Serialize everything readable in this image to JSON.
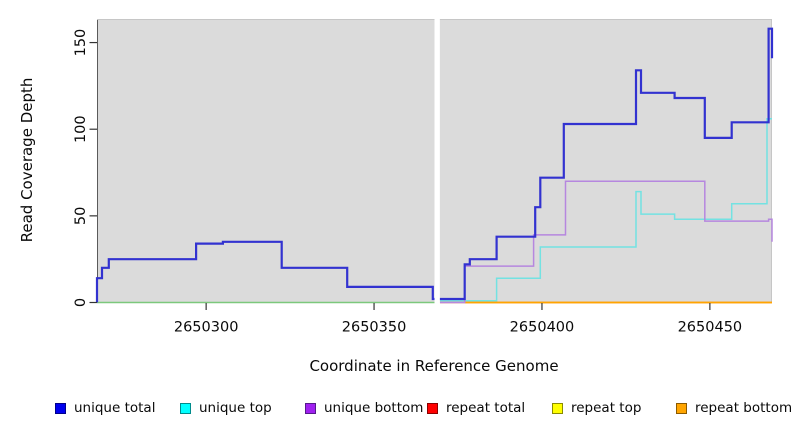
{
  "chart_data": {
    "type": "line",
    "subtype": "step-coverage-plot",
    "title": "",
    "xlabel": "Coordinate in Reference Genome",
    "ylabel": "Read Coverage Depth",
    "xlim": [
      2650267.5,
      2650468.5
    ],
    "ylim": [
      0,
      163.6
    ],
    "x_ticks": [
      2650300,
      2650350,
      2650400,
      2650450
    ],
    "y_ticks": [
      0,
      50,
      100,
      150
    ],
    "grid": false,
    "plot_bg": "#DBDBDB",
    "figure_bg": "#FFFFFF",
    "gap_region": {
      "x_start": 2650368,
      "x_end": 2650369.6,
      "color": "#FFFFFF",
      "note": "white vertical band with no data splitting the plot"
    },
    "series": [
      {
        "name": "repeat top",
        "legend_color": "#FFFF00",
        "line_color": "#FFFF00",
        "width": 1.5,
        "points": [
          [
            2650369.6,
            0
          ],
          [
            2650468.5,
            0
          ]
        ],
        "note": "zero across entire visible range; hidden under other zero lines"
      },
      {
        "name": "repeat total",
        "legend_color": "#FF0000",
        "line_color": "#F0659F",
        "width": 1.5,
        "points": [
          [
            2650369.6,
            0
          ],
          [
            2650468.5,
            0
          ]
        ],
        "note": "zero everywhere; visible as pink-red segment just right of the gap until 2650377"
      },
      {
        "name": "repeat bottom",
        "legend_color": "#FFA500",
        "line_color": "#FFA500",
        "width": 1.8,
        "points": [
          [
            2650377,
            0
          ],
          [
            2650468.5,
            0
          ]
        ],
        "note": "zero across right region; orange baseline from 2650377 to right edge"
      },
      {
        "name": "zero baseline left of gap",
        "legend_color": null,
        "line_color": "#7CC87C",
        "width": 1.5,
        "points": [
          [
            2650267.5,
            0
          ],
          [
            2650368,
            0
          ]
        ],
        "note": "all non-total series are 0 left of the gap; overlapping zero lines render green"
      },
      {
        "name": "unique top",
        "legend_color": "#00FFFF",
        "line_color": "#73E2E2",
        "width": 1.5,
        "points": [
          [
            2650369.6,
            1
          ],
          [
            2650386.5,
            14
          ],
          [
            2650399.5,
            32
          ],
          [
            2650428,
            64
          ],
          [
            2650429.5,
            51
          ],
          [
            2650439.5,
            48
          ],
          [
            2650456.5,
            57
          ],
          [
            2650467,
            106
          ],
          [
            2650468.5,
            106
          ]
        ],
        "note": "zero left of the gap"
      },
      {
        "name": "unique bottom",
        "legend_color": "#A020F0",
        "line_color": "#B687DF",
        "width": 1.5,
        "points": [
          [
            2650369.6,
            0
          ],
          [
            2650377,
            21
          ],
          [
            2650397.5,
            39
          ],
          [
            2650407,
            70
          ],
          [
            2650448.5,
            47
          ],
          [
            2650467.5,
            48
          ],
          [
            2650468.5,
            35
          ]
        ],
        "note": "zero left of the gap"
      },
      {
        "name": "unique total",
        "legend_color": "#0000EE",
        "line_color": "#3232D0",
        "width": 2.2,
        "points": [
          [
            2650267.5,
            0
          ],
          [
            2650267.5,
            14
          ],
          [
            2650269,
            20
          ],
          [
            2650271,
            25
          ],
          [
            2650297,
            34
          ],
          [
            2650305,
            35
          ],
          [
            2650322.5,
            20
          ],
          [
            2650342,
            9
          ],
          [
            2650367.5,
            2
          ],
          [
            2650377,
            22
          ],
          [
            2650378.5,
            25
          ],
          [
            2650386.5,
            38
          ],
          [
            2650398,
            55
          ],
          [
            2650399.5,
            72
          ],
          [
            2650406.5,
            103
          ],
          [
            2650428,
            134
          ],
          [
            2650429.5,
            121
          ],
          [
            2650439.5,
            118
          ],
          [
            2650448.5,
            95
          ],
          [
            2650456.5,
            104
          ],
          [
            2650467.5,
            158
          ],
          [
            2650468.5,
            141
          ]
        ]
      }
    ],
    "legend": [
      {
        "label": "unique total",
        "color": "#0000EE",
        "border": "#00008B"
      },
      {
        "label": "unique top",
        "color": "#00FFFF",
        "border": "#008B8B"
      },
      {
        "label": "unique bottom",
        "color": "#A020F0",
        "border": "#551A8B"
      },
      {
        "label": "repeat total",
        "color": "#FF0000",
        "border": "#8B0000"
      },
      {
        "label": "repeat top",
        "color": "#FFFF00",
        "border": "#8B8B00"
      },
      {
        "label": "repeat bottom",
        "color": "#FFA500",
        "border": "#8B5A00"
      }
    ],
    "legend_position": "bottom"
  }
}
